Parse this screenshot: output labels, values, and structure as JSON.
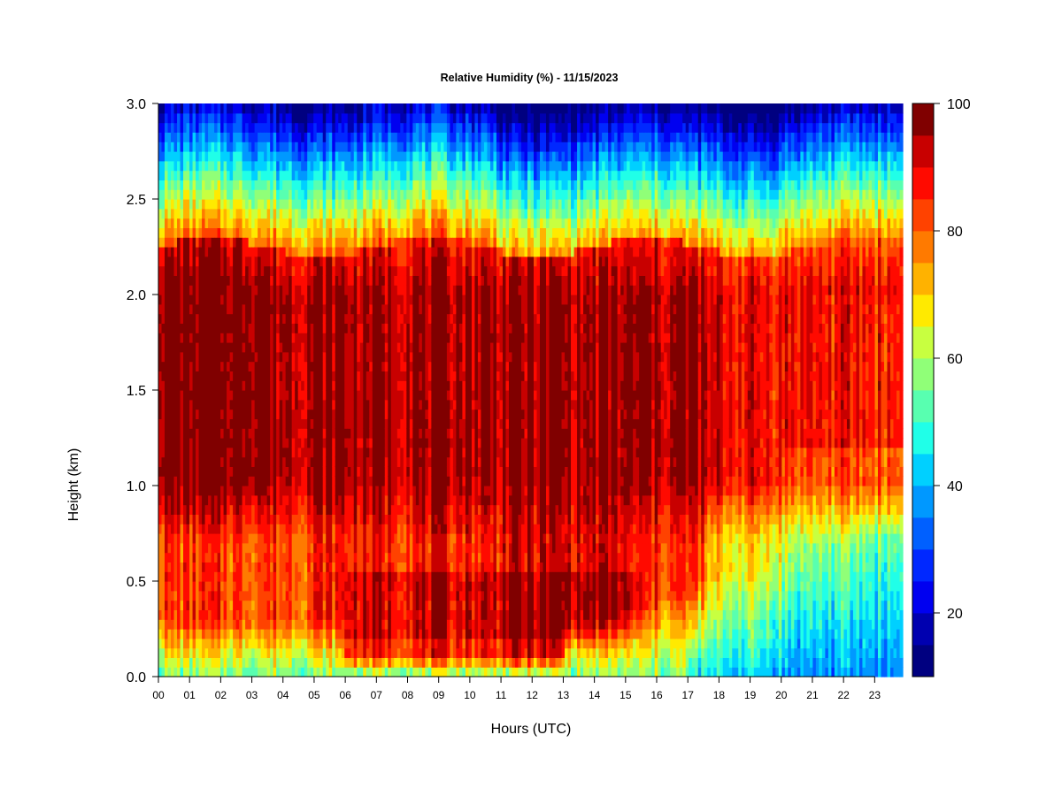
{
  "chart_data": {
    "type": "heatmap",
    "title": "Relative Humidity (%) - 11/15/2023",
    "xlabel": "Hours (UTC)",
    "ylabel": "Height (km)",
    "x_ticks": [
      "00",
      "01",
      "02",
      "03",
      "04",
      "05",
      "06",
      "07",
      "08",
      "09",
      "10",
      "11",
      "12",
      "13",
      "14",
      "15",
      "16",
      "17",
      "18",
      "19",
      "20",
      "21",
      "22",
      "23"
    ],
    "xlim": [
      0,
      23.9
    ],
    "ylim": [
      0.0,
      3.0
    ],
    "y_ticks": [
      "0.0",
      "0.5",
      "1.0",
      "1.5",
      "2.0",
      "2.5",
      "3.0"
    ],
    "colorbar": {
      "range": [
        10,
        100
      ],
      "step": 5,
      "tick_labels": [
        "20",
        "40",
        "60",
        "80",
        "100"
      ],
      "colors": [
        "#000080",
        "#0000b0",
        "#0000f0",
        "#0028ff",
        "#0060ff",
        "#0098ff",
        "#00d0ff",
        "#20ffe8",
        "#58ffb0",
        "#90ff78",
        "#c8ff40",
        "#ffea00",
        "#ffb200",
        "#ff7a00",
        "#ff4200",
        "#ff0a00",
        "#c80000",
        "#800000"
      ]
    },
    "grid": false,
    "legend": "right"
  }
}
